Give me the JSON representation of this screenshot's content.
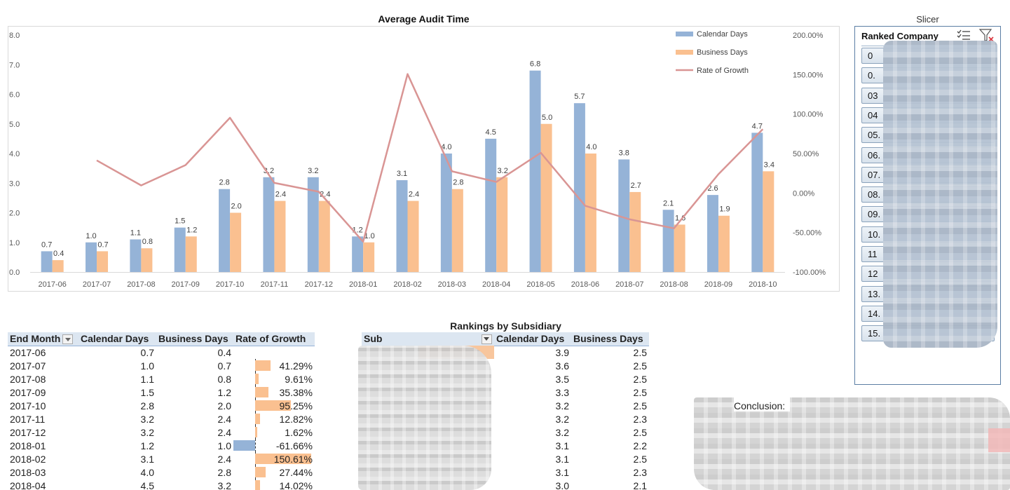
{
  "chart_data": {
    "type": "bar",
    "title": "Average Audit Time",
    "categories": [
      "2017-06",
      "2017-07",
      "2017-08",
      "2017-09",
      "2017-10",
      "2017-11",
      "2017-12",
      "2018-01",
      "2018-02",
      "2018-03",
      "2018-04",
      "2018-05",
      "2018-06",
      "2018-07",
      "2018-08",
      "2018-09",
      "2018-10"
    ],
    "series": [
      {
        "name": "Calendar Days",
        "type": "bar",
        "axis": "left",
        "color": "#95b3d7",
        "values": [
          0.7,
          1.0,
          1.1,
          1.5,
          2.8,
          3.2,
          3.2,
          1.2,
          3.1,
          4.0,
          4.5,
          6.8,
          5.7,
          3.8,
          2.1,
          2.6,
          4.7
        ]
      },
      {
        "name": "Business Days",
        "type": "bar",
        "axis": "left",
        "color": "#fac090",
        "values": [
          0.4,
          0.7,
          0.8,
          1.2,
          2.0,
          2.4,
          2.4,
          1.0,
          2.4,
          2.8,
          3.2,
          5.0,
          4.0,
          2.7,
          1.6,
          1.9,
          3.4
        ]
      },
      {
        "name": "Rate of Growth",
        "type": "line",
        "axis": "right",
        "color": "#d99594",
        "values": [
          null,
          41.29,
          9.61,
          35.38,
          95.25,
          12.82,
          1.62,
          -61.66,
          150.61,
          27.44,
          14.02,
          50.86,
          -16.18,
          -33.33,
          -44.74,
          23.81,
          80.77
        ]
      }
    ],
    "y_left": {
      "min": 0,
      "max": 8,
      "step": 1,
      "ticks": [
        "0.0",
        "1.0",
        "2.0",
        "3.0",
        "4.0",
        "5.0",
        "6.0",
        "7.0",
        "8.0"
      ]
    },
    "y_right": {
      "min": -100,
      "max": 200,
      "step": 50,
      "ticks": [
        "-100.00%",
        "-50.00%",
        "0.00%",
        "50.00%",
        "100.00%",
        "150.00%",
        "200.00%"
      ]
    },
    "legend_position": "top-right",
    "grid": false
  },
  "slicer": {
    "title": "Slicer",
    "header": "Ranked Company",
    "items": [
      "0",
      "0.",
      "03",
      "04",
      "05.",
      "06.",
      "07.",
      "08.",
      "09.",
      "10.",
      "11",
      "12",
      "13.",
      "14.",
      "15."
    ]
  },
  "left_table": {
    "headers": [
      "End Month",
      "Calendar Days",
      "Business Days",
      "Rate of Growth"
    ],
    "rows": [
      {
        "month": "2017-06",
        "cal": "0.7",
        "bus": "0.4",
        "rog": "",
        "rog_value": null
      },
      {
        "month": "2017-07",
        "cal": "1.0",
        "bus": "0.7",
        "rog": "41.29%",
        "rog_value": 41.29
      },
      {
        "month": "2017-08",
        "cal": "1.1",
        "bus": "0.8",
        "rog": "9.61%",
        "rog_value": 9.61
      },
      {
        "month": "2017-09",
        "cal": "1.5",
        "bus": "1.2",
        "rog": "35.38%",
        "rog_value": 35.38
      },
      {
        "month": "2017-10",
        "cal": "2.8",
        "bus": "2.0",
        "rog": "95.25%",
        "rog_value": 95.25
      },
      {
        "month": "2017-11",
        "cal": "3.2",
        "bus": "2.4",
        "rog": "12.82%",
        "rog_value": 12.82
      },
      {
        "month": "2017-12",
        "cal": "3.2",
        "bus": "2.4",
        "rog": "1.62%",
        "rog_value": 1.62
      },
      {
        "month": "2018-01",
        "cal": "1.2",
        "bus": "1.0",
        "rog": "-61.66%",
        "rog_value": -61.66
      },
      {
        "month": "2018-02",
        "cal": "3.1",
        "bus": "2.4",
        "rog": "150.61%",
        "rog_value": 150.61
      },
      {
        "month": "2018-03",
        "cal": "4.0",
        "bus": "2.8",
        "rog": "27.44%",
        "rog_value": 27.44
      },
      {
        "month": "2018-04",
        "cal": "4.5",
        "bus": "3.2",
        "rog": "14.02%",
        "rog_value": 14.02
      }
    ]
  },
  "right_table": {
    "title": "Rankings by Subsidiary",
    "headers": [
      "Sub",
      "Calendar Days",
      "Business Days"
    ],
    "rows": [
      {
        "cal": "3.9",
        "bus": "2.5"
      },
      {
        "cal": "3.6",
        "bus": "2.5"
      },
      {
        "cal": "3.5",
        "bus": "2.5"
      },
      {
        "cal": "3.3",
        "bus": "2.5"
      },
      {
        "cal": "3.2",
        "bus": "2.5"
      },
      {
        "cal": "3.2",
        "bus": "2.3"
      },
      {
        "cal": "3.2",
        "bus": "2.5"
      },
      {
        "cal": "3.1",
        "bus": "2.2"
      },
      {
        "cal": "3.1",
        "bus": "2.5"
      },
      {
        "cal": "3.1",
        "bus": "2.3"
      },
      {
        "cal": "3.0",
        "bus": "2.1"
      }
    ]
  },
  "conclusion": {
    "label": "Conclusion:"
  },
  "colors": {
    "calendar": "#95b3d7",
    "business": "#fac090",
    "growth": "#d99594",
    "negative_bar": "#95b3d7",
    "header_bg": "#dce6f1"
  }
}
